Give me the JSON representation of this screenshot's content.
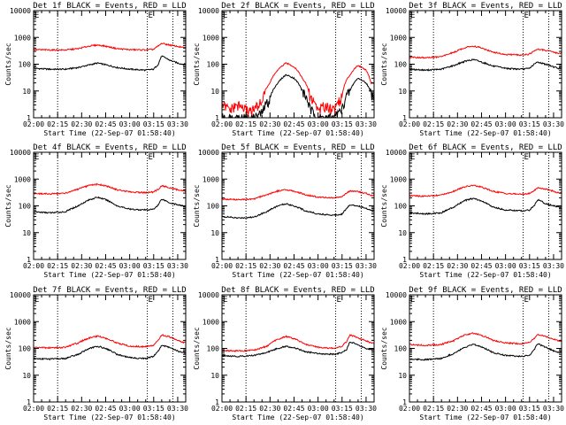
{
  "figure": {
    "xlabel": "Start Time (22-Sep-07 01:58:40)",
    "ylabel": "Counts/sec",
    "x_ticks": [
      "02:00",
      "02:15",
      "02:30",
      "02:45",
      "03:00",
      "03:15",
      "03:30"
    ],
    "x_range_minutes": [
      120,
      215
    ],
    "y_ticks": [
      "1",
      "10",
      "100",
      "1000",
      "10000"
    ],
    "y_range": [
      1,
      10000
    ],
    "y_scale": "log",
    "vlines_minutes": [
      135,
      191,
      207
    ],
    "marker_glyph": "E",
    "colors": {
      "events": "#000000",
      "lld": "#ff0000",
      "axes": "#000000"
    }
  },
  "chart_data": [
    {
      "type": "line",
      "title": "Det 1f BLACK = Events, RED = LLD",
      "x_minutes": [
        120,
        130,
        140,
        148,
        155,
        160,
        165,
        172,
        180,
        190,
        195,
        198,
        200,
        205,
        210,
        213
      ],
      "series": [
        {
          "name": "Events",
          "color": "#000000",
          "values": [
            70,
            65,
            65,
            75,
            95,
            110,
            95,
            75,
            65,
            60,
            65,
            100,
            200,
            140,
            110,
            100
          ]
        },
        {
          "name": "LLD",
          "color": "#ff0000",
          "values": [
            350,
            340,
            340,
            380,
            480,
            520,
            470,
            380,
            350,
            340,
            360,
            480,
            600,
            520,
            460,
            420
          ]
        }
      ]
    },
    {
      "type": "line",
      "title": "Det 2f BLACK = Events, RED = LLD",
      "x_minutes": [
        120,
        125,
        130,
        135,
        140,
        145,
        150,
        155,
        160,
        165,
        170,
        175,
        180,
        185,
        190,
        195,
        200,
        205,
        210,
        213
      ],
      "series": [
        {
          "name": "Events",
          "color": "#000000",
          "values": [
            1,
            1,
            1,
            1,
            1,
            1.5,
            5,
            20,
            40,
            30,
            10,
            2,
            1,
            1,
            1,
            2,
            10,
            30,
            20,
            8
          ]
        },
        {
          "name": "LLD",
          "color": "#ff0000",
          "values": [
            3,
            2,
            3,
            2,
            2,
            4,
            20,
            60,
            110,
            80,
            30,
            6,
            2,
            3,
            2,
            6,
            40,
            90,
            60,
            20
          ]
        }
      ]
    },
    {
      "type": "line",
      "title": "Det 3f BLACK = Events, RED = LLD",
      "x_minutes": [
        120,
        130,
        140,
        148,
        155,
        160,
        165,
        172,
        180,
        190,
        195,
        198,
        200,
        205,
        210,
        213
      ],
      "series": [
        {
          "name": "Events",
          "color": "#000000",
          "values": [
            65,
            60,
            65,
            90,
            130,
            150,
            120,
            85,
            70,
            65,
            70,
            100,
            120,
            100,
            80,
            70
          ]
        },
        {
          "name": "LLD",
          "color": "#ff0000",
          "values": [
            180,
            175,
            190,
            280,
            420,
            480,
            400,
            280,
            230,
            220,
            240,
            310,
            360,
            330,
            280,
            260
          ]
        }
      ]
    },
    {
      "type": "line",
      "title": "Det 4f BLACK = Events, RED = LLD",
      "x_minutes": [
        120,
        130,
        140,
        148,
        155,
        160,
        165,
        172,
        180,
        190,
        195,
        198,
        200,
        205,
        210,
        213
      ],
      "series": [
        {
          "name": "Events",
          "color": "#000000",
          "values": [
            60,
            55,
            60,
            100,
            170,
            210,
            170,
            100,
            75,
            70,
            75,
            110,
            180,
            130,
            110,
            100
          ]
        },
        {
          "name": "LLD",
          "color": "#ff0000",
          "values": [
            290,
            280,
            300,
            420,
            580,
            640,
            560,
            400,
            330,
            310,
            330,
            420,
            560,
            480,
            400,
            360
          ]
        }
      ]
    },
    {
      "type": "line",
      "title": "Det 5f BLACK = Events, RED = LLD",
      "x_minutes": [
        120,
        130,
        140,
        148,
        155,
        160,
        165,
        172,
        180,
        190,
        195,
        198,
        200,
        205,
        210,
        213
      ],
      "series": [
        {
          "name": "Events",
          "color": "#000000",
          "values": [
            40,
            35,
            38,
            60,
            100,
            120,
            100,
            65,
            50,
            45,
            50,
            80,
            110,
            100,
            80,
            70
          ]
        },
        {
          "name": "LLD",
          "color": "#ff0000",
          "values": [
            180,
            170,
            180,
            260,
            360,
            400,
            350,
            260,
            210,
            200,
            220,
            300,
            360,
            340,
            290,
            250
          ]
        }
      ]
    },
    {
      "type": "line",
      "title": "Det 6f BLACK = Events, RED = LLD",
      "x_minutes": [
        120,
        130,
        140,
        148,
        155,
        160,
        165,
        172,
        180,
        190,
        195,
        198,
        200,
        205,
        210,
        213
      ],
      "series": [
        {
          "name": "Events",
          "color": "#000000",
          "values": [
            55,
            50,
            55,
            90,
            160,
            190,
            150,
            90,
            70,
            65,
            70,
            100,
            170,
            120,
            100,
            90
          ]
        },
        {
          "name": "LLD",
          "color": "#ff0000",
          "values": [
            240,
            230,
            250,
            360,
            520,
            580,
            500,
            350,
            290,
            270,
            290,
            370,
            480,
            420,
            350,
            310
          ]
        }
      ]
    },
    {
      "type": "line",
      "title": "Det 7f BLACK = Events, RED = LLD",
      "x_minutes": [
        120,
        130,
        140,
        148,
        155,
        160,
        165,
        172,
        180,
        190,
        195,
        198,
        200,
        205,
        210,
        213
      ],
      "series": [
        {
          "name": "Events",
          "color": "#000000",
          "values": [
            42,
            40,
            42,
            60,
            100,
            120,
            100,
            60,
            45,
            42,
            50,
            80,
            130,
            110,
            80,
            70
          ]
        },
        {
          "name": "LLD",
          "color": "#ff0000",
          "values": [
            110,
            105,
            110,
            160,
            250,
            290,
            240,
            160,
            120,
            115,
            130,
            200,
            320,
            270,
            200,
            170
          ]
        }
      ]
    },
    {
      "type": "line",
      "title": "Det 8f BLACK = Events, RED = LLD",
      "x_minutes": [
        120,
        130,
        140,
        148,
        155,
        160,
        165,
        172,
        180,
        190,
        195,
        198,
        200,
        205,
        210,
        213
      ],
      "series": [
        {
          "name": "Events",
          "color": "#000000",
          "values": [
            55,
            50,
            55,
            70,
            100,
            120,
            105,
            75,
            65,
            60,
            70,
            90,
            180,
            130,
            100,
            90
          ]
        },
        {
          "name": "LLD",
          "color": "#ff0000",
          "values": [
            85,
            80,
            85,
            120,
            220,
            280,
            230,
            140,
            110,
            100,
            120,
            180,
            320,
            250,
            190,
            160
          ]
        }
      ]
    },
    {
      "type": "line",
      "title": "Det 9f BLACK = Events, RED = LLD",
      "x_minutes": [
        120,
        130,
        140,
        148,
        155,
        160,
        165,
        172,
        180,
        190,
        195,
        198,
        200,
        205,
        210,
        213
      ],
      "series": [
        {
          "name": "Events",
          "color": "#000000",
          "values": [
            40,
            38,
            42,
            65,
            110,
            140,
            115,
            70,
            55,
            50,
            55,
            90,
            150,
            110,
            80,
            70
          ]
        },
        {
          "name": "LLD",
          "color": "#ff0000",
          "values": [
            140,
            130,
            140,
            200,
            320,
            370,
            310,
            200,
            160,
            150,
            170,
            240,
            340,
            280,
            220,
            190
          ]
        }
      ]
    }
  ]
}
